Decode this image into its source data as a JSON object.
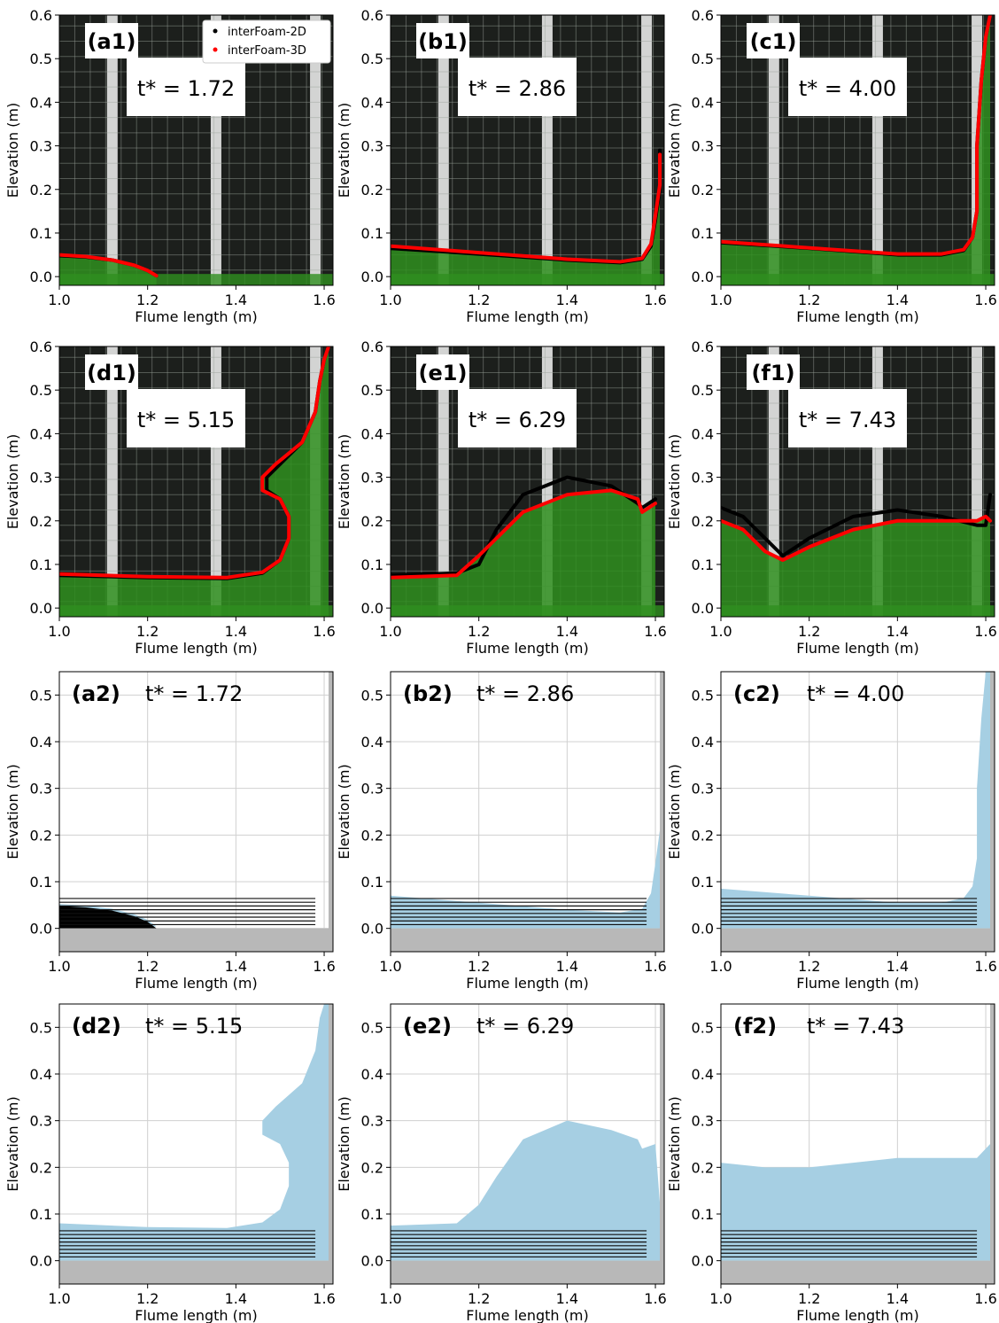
{
  "figure": {
    "xlabel": "Flume length (m)",
    "ylabel": "Elevation (m)",
    "legend": {
      "placement": "top-right of panel (a1)",
      "entries": [
        {
          "label": "interFoam-2D",
          "color": "#000000"
        },
        {
          "label": "interFoam-3D",
          "color": "#ff0000"
        }
      ]
    },
    "colors": {
      "interface_2d": "#000000",
      "interface_3d": "#ff0000",
      "water_fill": "#a6cfe3",
      "ground": "#b8b8b8",
      "photo_bg": "#1c1f1c",
      "photo_water": "#2f8f1f",
      "photo_foam": "#e5e24a"
    }
  },
  "chart_data": [
    {
      "id": "a1",
      "type": "line",
      "label": "(a1)",
      "time_label": "t* = 1.72",
      "xlim": [
        1.0,
        1.62
      ],
      "ylim": [
        -0.02,
        0.6
      ],
      "xticks": [
        "1.0",
        "1.2",
        "1.4",
        "1.6"
      ],
      "yticks": [
        "0.0",
        "0.1",
        "0.2",
        "0.3",
        "0.4",
        "0.5",
        "0.6"
      ],
      "series": [
        {
          "name": "interFoam-2D",
          "color": "#000000",
          "x": [
            1.0,
            1.06,
            1.12,
            1.17,
            1.2,
            1.22
          ],
          "y": [
            0.048,
            0.045,
            0.038,
            0.026,
            0.014,
            0.002
          ]
        },
        {
          "name": "interFoam-3D",
          "color": "#ff0000",
          "x": [
            1.0,
            1.06,
            1.12,
            1.17,
            1.2,
            1.22
          ],
          "y": [
            0.05,
            0.046,
            0.038,
            0.026,
            0.014,
            0.002
          ]
        }
      ]
    },
    {
      "id": "b1",
      "type": "line",
      "label": "(b1)",
      "time_label": "t* = 2.86",
      "xlim": [
        1.0,
        1.62
      ],
      "ylim": [
        -0.02,
        0.6
      ],
      "xticks": [
        "1.0",
        "1.2",
        "1.4",
        "1.6"
      ],
      "yticks": [
        "0.0",
        "0.1",
        "0.2",
        "0.3",
        "0.4",
        "0.5",
        "0.6"
      ],
      "series": [
        {
          "name": "interFoam-2D",
          "color": "#000000",
          "x": [
            1.0,
            1.2,
            1.4,
            1.52,
            1.57,
            1.59,
            1.6,
            1.61,
            1.61
          ],
          "y": [
            0.065,
            0.052,
            0.038,
            0.032,
            0.04,
            0.07,
            0.13,
            0.2,
            0.29
          ]
        },
        {
          "name": "interFoam-3D",
          "color": "#ff0000",
          "x": [
            1.0,
            1.2,
            1.4,
            1.52,
            1.57,
            1.59,
            1.6,
            1.61,
            1.61
          ],
          "y": [
            0.07,
            0.055,
            0.04,
            0.034,
            0.042,
            0.075,
            0.14,
            0.21,
            0.28
          ]
        }
      ]
    },
    {
      "id": "c1",
      "type": "line",
      "label": "(c1)",
      "time_label": "t* = 4.00",
      "xlim": [
        1.0,
        1.62
      ],
      "ylim": [
        -0.02,
        0.6
      ],
      "xticks": [
        "1.0",
        "1.2",
        "1.4",
        "1.6"
      ],
      "yticks": [
        "0.0",
        "0.1",
        "0.2",
        "0.3",
        "0.4",
        "0.5",
        "0.6"
      ],
      "series": [
        {
          "name": "interFoam-2D",
          "color": "#000000",
          "x": [
            1.0,
            1.2,
            1.4,
            1.5,
            1.55,
            1.57,
            1.58,
            1.58,
            1.59,
            1.6,
            1.61
          ],
          "y": [
            0.078,
            0.065,
            0.05,
            0.05,
            0.06,
            0.09,
            0.15,
            0.3,
            0.45,
            0.55,
            0.6
          ]
        },
        {
          "name": "interFoam-3D",
          "color": "#ff0000",
          "x": [
            1.0,
            1.2,
            1.4,
            1.5,
            1.55,
            1.57,
            1.58,
            1.58,
            1.59,
            1.6,
            1.61
          ],
          "y": [
            0.08,
            0.066,
            0.052,
            0.052,
            0.062,
            0.09,
            0.15,
            0.3,
            0.45,
            0.55,
            0.6
          ]
        }
      ]
    },
    {
      "id": "d1",
      "type": "line",
      "label": "(d1)",
      "time_label": "t* = 5.15",
      "xlim": [
        1.0,
        1.62
      ],
      "ylim": [
        -0.02,
        0.6
      ],
      "xticks": [
        "1.0",
        "1.2",
        "1.4",
        "1.6"
      ],
      "yticks": [
        "0.0",
        "0.1",
        "0.2",
        "0.3",
        "0.4",
        "0.5",
        "0.6"
      ],
      "series": [
        {
          "name": "interFoam-2D",
          "color": "#000000",
          "x": [
            1.0,
            1.2,
            1.38,
            1.46,
            1.5,
            1.52,
            1.52,
            1.5,
            1.47,
            1.47,
            1.5,
            1.55,
            1.58,
            1.59,
            1.6,
            1.61
          ],
          "y": [
            0.075,
            0.07,
            0.068,
            0.08,
            0.11,
            0.16,
            0.21,
            0.25,
            0.27,
            0.3,
            0.33,
            0.38,
            0.45,
            0.52,
            0.57,
            0.6
          ]
        },
        {
          "name": "interFoam-3D",
          "color": "#ff0000",
          "x": [
            1.0,
            1.2,
            1.38,
            1.46,
            1.5,
            1.52,
            1.52,
            1.5,
            1.46,
            1.46,
            1.49,
            1.55,
            1.58,
            1.59,
            1.6,
            1.61
          ],
          "y": [
            0.078,
            0.072,
            0.07,
            0.082,
            0.11,
            0.16,
            0.21,
            0.25,
            0.27,
            0.3,
            0.33,
            0.38,
            0.45,
            0.52,
            0.57,
            0.6
          ]
        }
      ]
    },
    {
      "id": "e1",
      "type": "line",
      "label": "(e1)",
      "time_label": "t* = 6.29",
      "xlim": [
        1.0,
        1.62
      ],
      "ylim": [
        -0.02,
        0.6
      ],
      "xticks": [
        "1.0",
        "1.2",
        "1.4",
        "1.6"
      ],
      "yticks": [
        "0.0",
        "0.1",
        "0.2",
        "0.3",
        "0.4",
        "0.5",
        "0.6"
      ],
      "series": [
        {
          "name": "interFoam-2D",
          "color": "#000000",
          "x": [
            1.0,
            1.15,
            1.2,
            1.24,
            1.3,
            1.4,
            1.5,
            1.56,
            1.57,
            1.6
          ],
          "y": [
            0.075,
            0.08,
            0.1,
            0.18,
            0.26,
            0.3,
            0.28,
            0.24,
            0.23,
            0.25
          ]
        },
        {
          "name": "interFoam-3D",
          "color": "#ff0000",
          "x": [
            1.0,
            1.15,
            1.2,
            1.24,
            1.3,
            1.4,
            1.5,
            1.56,
            1.57,
            1.6
          ],
          "y": [
            0.07,
            0.075,
            0.12,
            0.16,
            0.22,
            0.26,
            0.27,
            0.25,
            0.22,
            0.24
          ]
        }
      ]
    },
    {
      "id": "f1",
      "type": "line",
      "label": "(f1)",
      "time_label": "t* = 7.43",
      "xlim": [
        1.0,
        1.62
      ],
      "ylim": [
        -0.02,
        0.6
      ],
      "xticks": [
        "1.0",
        "1.2",
        "1.4",
        "1.6"
      ],
      "yticks": [
        "0.0",
        "0.1",
        "0.2",
        "0.3",
        "0.4",
        "0.5",
        "0.6"
      ],
      "series": [
        {
          "name": "interFoam-2D",
          "color": "#000000",
          "x": [
            1.0,
            1.05,
            1.1,
            1.14,
            1.2,
            1.3,
            1.4,
            1.5,
            1.58,
            1.6,
            1.61
          ],
          "y": [
            0.23,
            0.21,
            0.16,
            0.12,
            0.16,
            0.21,
            0.225,
            0.21,
            0.19,
            0.19,
            0.26
          ]
        },
        {
          "name": "interFoam-3D",
          "color": "#ff0000",
          "x": [
            1.0,
            1.05,
            1.1,
            1.14,
            1.2,
            1.3,
            1.4,
            1.5,
            1.58,
            1.6,
            1.61
          ],
          "y": [
            0.2,
            0.18,
            0.13,
            0.11,
            0.14,
            0.18,
            0.2,
            0.2,
            0.2,
            0.21,
            0.2
          ]
        }
      ]
    },
    {
      "id": "a2",
      "type": "area",
      "label": "(a2)",
      "time_label": "t* = 1.72",
      "xlim": [
        1.0,
        1.62
      ],
      "ylim": [
        -0.05,
        0.55
      ],
      "xticks": [
        "1.0",
        "1.2",
        "1.4",
        "1.6"
      ],
      "yticks": [
        "0.0",
        "0.1",
        "0.2",
        "0.3",
        "0.4",
        "0.5"
      ],
      "surface": {
        "x": [
          1.0,
          1.06,
          1.12,
          1.17,
          1.2,
          1.22
        ],
        "y": [
          0.048,
          0.045,
          0.038,
          0.026,
          0.014,
          0.0
        ]
      }
    },
    {
      "id": "b2",
      "type": "area",
      "label": "(b2)",
      "time_label": "t* = 2.86",
      "xlim": [
        1.0,
        1.62
      ],
      "ylim": [
        -0.05,
        0.55
      ],
      "xticks": [
        "1.0",
        "1.2",
        "1.4",
        "1.6"
      ],
      "yticks": [
        "0.0",
        "0.1",
        "0.2",
        "0.3",
        "0.4",
        "0.5"
      ],
      "surface": {
        "x": [
          1.0,
          1.2,
          1.4,
          1.52,
          1.57,
          1.59,
          1.6,
          1.61,
          1.61
        ],
        "y": [
          0.07,
          0.055,
          0.04,
          0.034,
          0.042,
          0.075,
          0.14,
          0.21,
          0.28
        ]
      }
    },
    {
      "id": "c2",
      "type": "area",
      "label": "(c2)",
      "time_label": "t* = 4.00",
      "xlim": [
        1.0,
        1.62
      ],
      "ylim": [
        -0.05,
        0.55
      ],
      "xticks": [
        "1.0",
        "1.2",
        "1.4",
        "1.6"
      ],
      "yticks": [
        "0.0",
        "0.1",
        "0.2",
        "0.3",
        "0.4",
        "0.5"
      ],
      "surface": {
        "x": [
          1.0,
          1.2,
          1.4,
          1.5,
          1.55,
          1.57,
          1.58,
          1.58,
          1.59,
          1.6,
          1.61
        ],
        "y": [
          0.085,
          0.07,
          0.055,
          0.055,
          0.065,
          0.09,
          0.15,
          0.3,
          0.45,
          0.55,
          0.55
        ]
      }
    },
    {
      "id": "d2",
      "type": "area",
      "label": "(d2)",
      "time_label": "t* = 5.15",
      "xlim": [
        1.0,
        1.62
      ],
      "ylim": [
        -0.05,
        0.55
      ],
      "xticks": [
        "1.0",
        "1.2",
        "1.4",
        "1.6"
      ],
      "yticks": [
        "0.0",
        "0.1",
        "0.2",
        "0.3",
        "0.4",
        "0.5"
      ],
      "surface": {
        "x": [
          1.0,
          1.2,
          1.38,
          1.46,
          1.5,
          1.52,
          1.52,
          1.5,
          1.46,
          1.46,
          1.49,
          1.55,
          1.58,
          1.59,
          1.6,
          1.61
        ],
        "y": [
          0.08,
          0.072,
          0.07,
          0.082,
          0.11,
          0.16,
          0.21,
          0.25,
          0.27,
          0.3,
          0.33,
          0.38,
          0.45,
          0.52,
          0.55,
          0.55
        ]
      }
    },
    {
      "id": "e2",
      "type": "area",
      "label": "(e2)",
      "time_label": "t* = 6.29",
      "xlim": [
        1.0,
        1.62
      ],
      "ylim": [
        -0.05,
        0.55
      ],
      "xticks": [
        "1.0",
        "1.2",
        "1.4",
        "1.6"
      ],
      "yticks": [
        "0.0",
        "0.1",
        "0.2",
        "0.3",
        "0.4",
        "0.5"
      ],
      "surface": {
        "x": [
          1.0,
          1.15,
          1.2,
          1.24,
          1.3,
          1.4,
          1.5,
          1.56,
          1.57,
          1.6
        ],
        "y": [
          0.075,
          0.08,
          0.12,
          0.18,
          0.26,
          0.3,
          0.28,
          0.26,
          0.24,
          0.25
        ]
      }
    },
    {
      "id": "f2",
      "type": "area",
      "label": "(f2)",
      "time_label": "t* = 7.43",
      "xlim": [
        1.0,
        1.62
      ],
      "ylim": [
        -0.05,
        0.55
      ],
      "xticks": [
        "1.0",
        "1.2",
        "1.4",
        "1.6"
      ],
      "yticks": [
        "0.0",
        "0.1",
        "0.2",
        "0.3",
        "0.4",
        "0.5"
      ],
      "surface": {
        "x": [
          1.0,
          1.1,
          1.2,
          1.3,
          1.4,
          1.5,
          1.58,
          1.61
        ],
        "y": [
          0.21,
          0.2,
          0.2,
          0.21,
          0.22,
          0.22,
          0.22,
          0.25
        ]
      }
    }
  ]
}
